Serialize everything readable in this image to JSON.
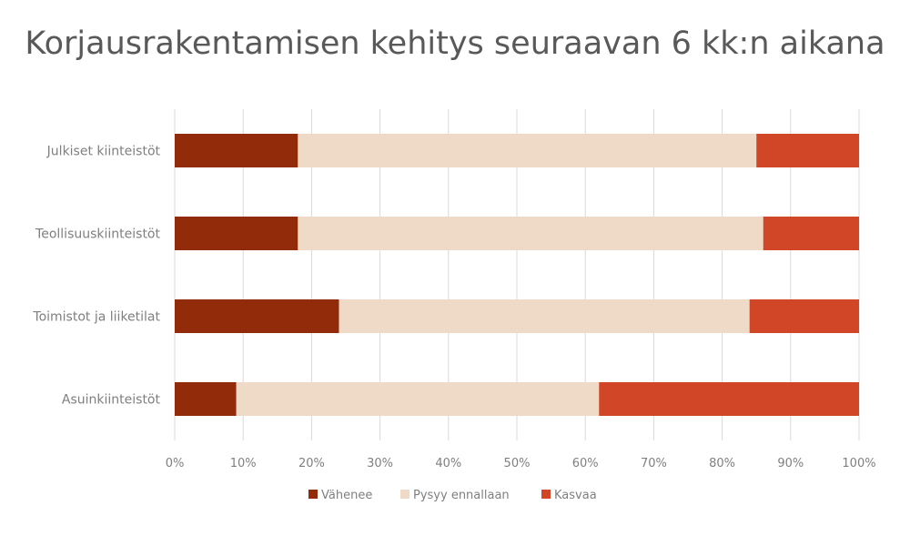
{
  "chart_data": {
    "type": "bar",
    "orientation": "horizontal",
    "stacked": "percent",
    "title": "Korjausrakentamisen kehitys seuraavan 6 kk:n aikana",
    "categories": [
      "Julkiset kiinteistöt",
      "Teollisuuskiinteistöt",
      "Toimistot ja liiketilat",
      "Asuinkiinteistöt"
    ],
    "series": [
      {
        "name": "Vähenee",
        "color": "#922B0A",
        "values": [
          18,
          18,
          24,
          9
        ]
      },
      {
        "name": "Pysyy ennallaan",
        "color": "#EEDAC6",
        "values": [
          67,
          68,
          60,
          53
        ]
      },
      {
        "name": "Kasvaa",
        "color": "#D14626",
        "values": [
          15,
          14,
          16,
          38
        ]
      }
    ],
    "xlim": [
      0,
      100
    ],
    "x_ticks": [
      "0%",
      "10%",
      "20%",
      "30%",
      "40%",
      "50%",
      "60%",
      "70%",
      "80%",
      "90%",
      "100%"
    ],
    "grid": "vertical",
    "legend_position": "bottom"
  }
}
